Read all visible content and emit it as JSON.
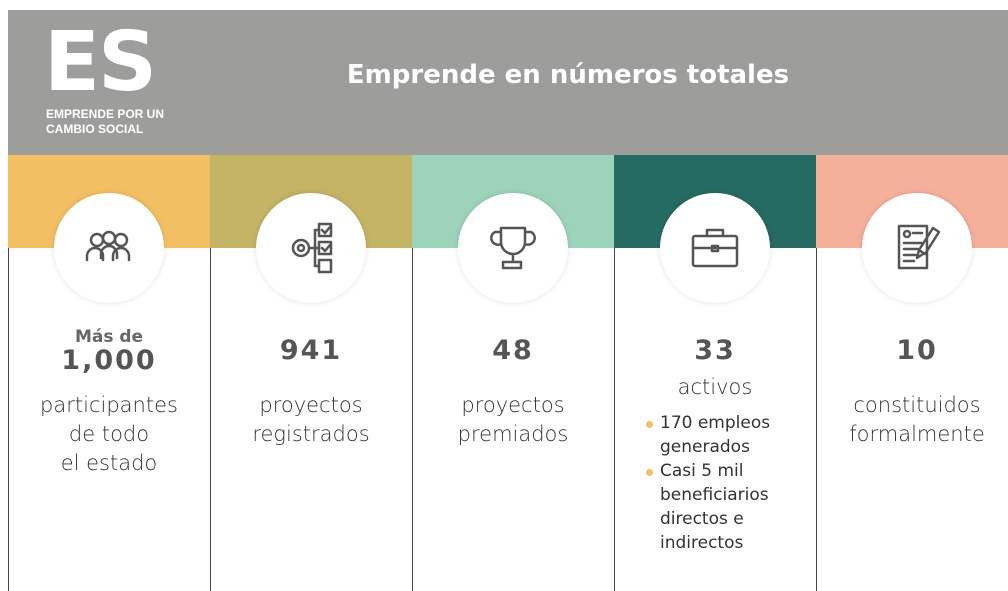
{
  "header": {
    "logo": "ES",
    "logo_lines": [
      "EMPRENDE POR UN",
      "CAMBIO SOCIAL"
    ],
    "title": "Emprende en números totales"
  },
  "stats": [
    {
      "color": "#f2c063",
      "prefix": "Más de",
      "value": "1,000",
      "lines": [
        "participantes",
        "de todo",
        "el estado"
      ]
    },
    {
      "color": "#c4b466",
      "value": "941",
      "lines": [
        "proyectos",
        "registrados"
      ]
    },
    {
      "color": "#9dd3bb",
      "value": "48",
      "lines": [
        "proyectos",
        "premiados"
      ]
    },
    {
      "color": "#266b62",
      "value": "33",
      "lines": [
        "activos"
      ],
      "bullets": [
        [
          "170 empleos",
          "generados"
        ],
        [
          "Casi 5 mil",
          "beneficiarios",
          "directos e",
          "indirectos"
        ]
      ]
    },
    {
      "color": "#f5b09c",
      "value": "10",
      "lines": [
        "constituidos",
        "formalmente"
      ]
    }
  ]
}
